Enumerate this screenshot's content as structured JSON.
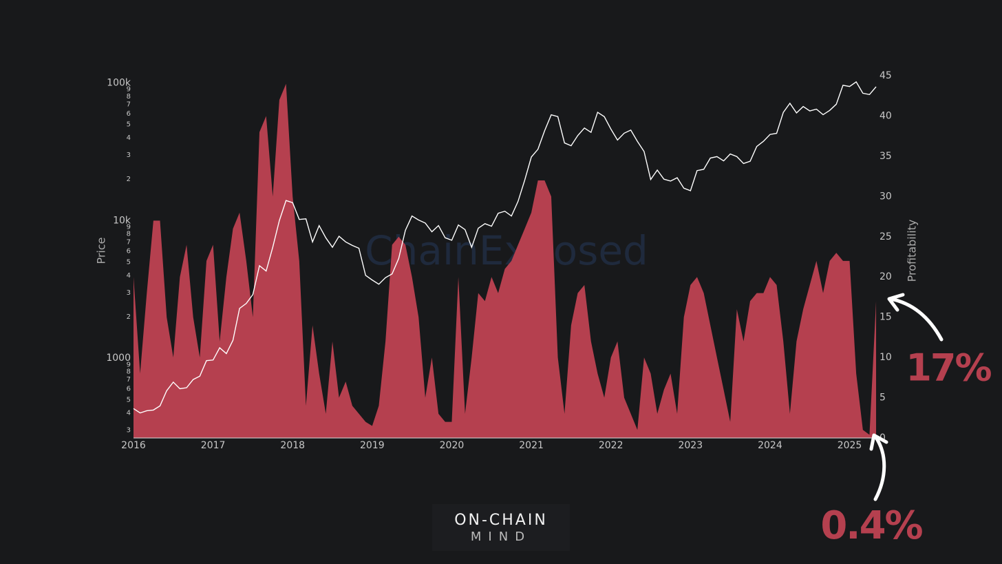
{
  "chart_data": {
    "type": "line",
    "ylabel": "Price",
    "y2label": "Profitability",
    "watermark": "ChainExposed",
    "logo": {
      "line1": "ON-CHAIN",
      "line2": "MIND"
    },
    "annotations": [
      {
        "text": "17%"
      },
      {
        "text": "0.4%"
      }
    ],
    "log_y": true,
    "xlim": [
      2016,
      2025.35
    ],
    "xticks": [
      2016,
      2017,
      2018,
      2019,
      2020,
      2021,
      2022,
      2023,
      2024,
      2025
    ],
    "ylim": [
      263,
      113000
    ],
    "yticks": [
      {
        "value": 300,
        "label": "3"
      },
      {
        "value": 400,
        "label": "4"
      },
      {
        "value": 500,
        "label": "5"
      },
      {
        "value": 600,
        "label": "6"
      },
      {
        "value": 700,
        "label": "7"
      },
      {
        "value": 800,
        "label": "8"
      },
      {
        "value": 900,
        "label": "9"
      },
      1000,
      {
        "value": 2000,
        "label": "2"
      },
      {
        "value": 3000,
        "label": "3"
      },
      {
        "value": 4000,
        "label": "4"
      },
      {
        "value": 5000,
        "label": "5"
      },
      {
        "value": 6000,
        "label": "6"
      },
      {
        "value": 7000,
        "label": "7"
      },
      {
        "value": 8000,
        "label": "8"
      },
      {
        "value": 9000,
        "label": "9"
      },
      {
        "value": 10000,
        "label": "10k"
      },
      {
        "value": 20000,
        "label": "2"
      },
      {
        "value": 30000,
        "label": "3"
      },
      {
        "value": 40000,
        "label": "4"
      },
      {
        "value": 50000,
        "label": "5"
      },
      {
        "value": 60000,
        "label": "6"
      },
      {
        "value": 70000,
        "label": "7"
      },
      {
        "value": 80000,
        "label": "8"
      },
      {
        "value": 90000,
        "label": "9"
      },
      {
        "value": 100000,
        "label": "100k"
      }
    ],
    "y2lim": [
      0,
      45
    ],
    "y2ticks": [
      0,
      5,
      10,
      15,
      20,
      25,
      30,
      35,
      40,
      45
    ],
    "x": [
      2016,
      2016.083,
      2016.167,
      2016.25,
      2016.333,
      2016.417,
      2016.5,
      2016.583,
      2016.667,
      2016.75,
      2016.833,
      2016.917,
      2017,
      2017.083,
      2017.167,
      2017.25,
      2017.333,
      2017.417,
      2017.5,
      2017.583,
      2017.667,
      2017.75,
      2017.833,
      2017.917,
      2018,
      2018.083,
      2018.167,
      2018.25,
      2018.333,
      2018.417,
      2018.5,
      2018.583,
      2018.667,
      2018.75,
      2018.833,
      2018.917,
      2019,
      2019.083,
      2019.167,
      2019.25,
      2019.333,
      2019.417,
      2019.5,
      2019.583,
      2019.667,
      2019.75,
      2019.833,
      2019.917,
      2020,
      2020.083,
      2020.167,
      2020.25,
      2020.333,
      2020.417,
      2020.5,
      2020.583,
      2020.667,
      2020.75,
      2020.833,
      2020.917,
      2021,
      2021.083,
      2021.167,
      2021.25,
      2021.333,
      2021.417,
      2021.5,
      2021.583,
      2021.667,
      2021.75,
      2021.833,
      2021.917,
      2022,
      2022.083,
      2022.167,
      2022.25,
      2022.333,
      2022.417,
      2022.5,
      2022.583,
      2022.667,
      2022.75,
      2022.833,
      2022.917,
      2023,
      2023.083,
      2023.167,
      2023.25,
      2023.333,
      2023.417,
      2023.5,
      2023.583,
      2023.667,
      2023.75,
      2023.833,
      2023.917,
      2024,
      2024.083,
      2024.167,
      2024.25,
      2024.333,
      2024.417,
      2024.5,
      2024.583,
      2024.667,
      2024.75,
      2024.833,
      2024.917,
      2025,
      2025.083,
      2025.167,
      2025.25,
      2025.333
    ],
    "series": [
      {
        "name": "Price",
        "type": "line",
        "color": "#ffffff",
        "values": [
          430,
          400,
          415,
          420,
          450,
          580,
          670,
          600,
          610,
          700,
          740,
          960,
          970,
          1190,
          1080,
          1350,
          2300,
          2500,
          2900,
          4700,
          4300,
          6400,
          10000,
          14000,
          13500,
          10200,
          10300,
          7000,
          9200,
          7500,
          6400,
          7700,
          7000,
          6600,
          6300,
          4000,
          3700,
          3450,
          3850,
          4100,
          5300,
          8500,
          10800,
          10100,
          9600,
          8300,
          9200,
          7500,
          7200,
          9300,
          8600,
          6400,
          8800,
          9500,
          9100,
          11300,
          11700,
          10800,
          13800,
          19700,
          29000,
          33000,
          45000,
          58800,
          57000,
          36700,
          35000,
          41500,
          47100,
          43800,
          61300,
          57000,
          46300,
          38500,
          43200,
          45500,
          37700,
          31800,
          19900,
          23300,
          20000,
          19400,
          20500,
          17200,
          16500,
          23100,
          23600,
          28500,
          29200,
          27200,
          30500,
          29200,
          26000,
          27000,
          34600,
          37700,
          42300,
          43100,
          61200,
          71300,
          60600,
          67500,
          62700,
          64600,
          58900,
          63300,
          70200,
          96400,
          94400,
          102000,
          84300,
          82500,
          94000
        ]
      },
      {
        "name": "Profitability",
        "type": "area",
        "axis": "y2",
        "color": "#b5404f",
        "values": [
          20,
          8,
          18,
          27,
          27,
          15,
          10,
          20,
          24,
          15,
          10,
          22,
          24,
          12,
          20,
          26,
          28,
          22,
          15,
          38,
          40,
          30,
          42,
          44,
          30,
          22,
          4,
          14,
          8,
          3,
          12,
          5,
          7,
          4,
          3,
          2,
          1.5,
          4,
          12,
          24,
          25,
          24,
          20,
          15,
          5,
          10,
          3,
          2,
          2,
          20,
          3,
          10,
          18,
          17,
          20,
          18,
          21,
          22,
          24,
          26,
          28,
          32,
          32,
          30,
          10,
          3,
          14,
          18,
          19,
          12,
          8,
          5,
          10,
          12,
          5,
          3,
          1,
          10,
          8,
          3,
          6,
          8,
          3,
          15,
          19,
          20,
          18,
          14,
          10,
          6,
          2,
          16,
          12,
          17,
          18,
          18,
          20,
          19,
          12,
          3,
          12,
          16,
          19,
          22,
          18,
          22,
          23,
          22,
          22,
          8,
          1,
          0.4,
          17
        ]
      }
    ]
  }
}
